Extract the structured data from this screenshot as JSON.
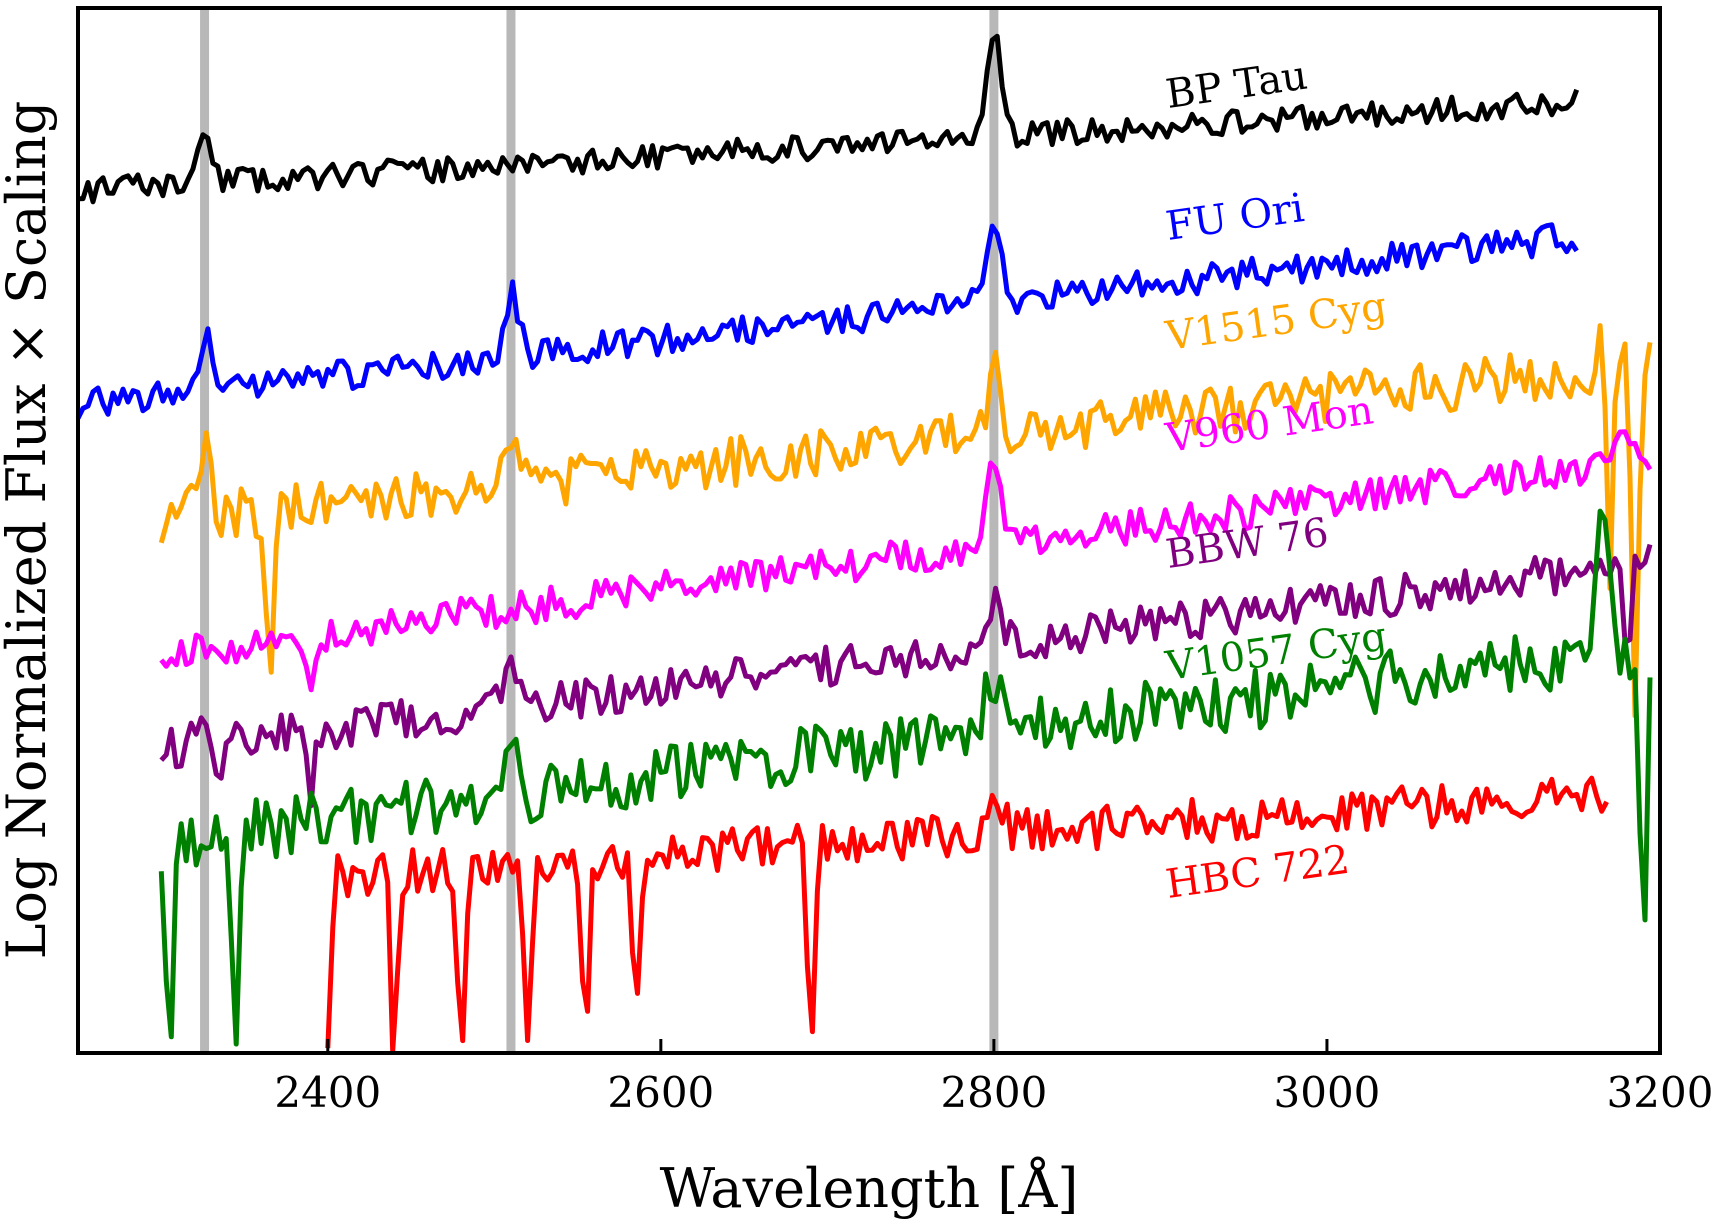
{
  "chart_data": {
    "type": "line",
    "title": "",
    "xlabel": "Wavelength [Å]",
    "ylabel": "Log Normalized Flux × Scaling",
    "xlim": [
      2250,
      3200
    ],
    "ylim": [
      0,
      10
    ],
    "xticks": [
      2400,
      2600,
      2800,
      3000,
      3200
    ],
    "xtick_labels": [
      "2400",
      "2600",
      "2800",
      "3000",
      "3200"
    ],
    "grid": false,
    "legend": "inline labels at right",
    "reference_lines": [
      {
        "name": "line-2326",
        "x": 2326
      },
      {
        "name": "line-2510",
        "x": 2510
      },
      {
        "name": "line-2800",
        "x": 2800
      }
    ],
    "series": [
      {
        "name": "BP Tau",
        "label": "BP Tau",
        "color": "#000000",
        "x_start": 2250,
        "x_end": 3150,
        "base": 8.25,
        "slope": 0.9,
        "noise": 0.2,
        "seed": 11,
        "lines": [
          [
            2326,
            0.45
          ],
          [
            2800,
            1.0
          ]
        ],
        "dips": []
      },
      {
        "name": "FU Ori",
        "label": "FU Ori",
        "color": "#0000ff",
        "x_start": 2250,
        "x_end": 3150,
        "base": 6.2,
        "slope": 1.7,
        "noise": 0.24,
        "seed": 23,
        "lines": [
          [
            2326,
            0.5
          ],
          [
            2510,
            0.6
          ],
          [
            2800,
            0.8
          ]
        ],
        "dips": []
      },
      {
        "name": "V1515 Cyg",
        "label": "V1515 Cyg",
        "color": "#ffa500",
        "x_start": 2300,
        "x_end": 3195,
        "base": 5.0,
        "slope": 1.6,
        "noise": 0.4,
        "seed": 37,
        "lines": [
          [
            2326,
            0.6
          ],
          [
            2510,
            0.5
          ],
          [
            2800,
            0.6
          ],
          [
            3170,
            0.9
          ]
        ],
        "dips": [
          [
            2365,
            1.7
          ],
          [
            3185,
            3.4
          ],
          [
            3170,
            3.2
          ]
        ]
      },
      {
        "name": "V960 Mon",
        "label": "V960 Mon",
        "color": "#ff00ff",
        "x_start": 2300,
        "x_end": 3195,
        "base": 3.7,
        "slope": 2.0,
        "noise": 0.28,
        "seed": 41,
        "lines": [
          [
            2800,
            0.7
          ],
          [
            3175,
            0.4
          ]
        ],
        "dips": [
          [
            2390,
            0.6
          ]
        ]
      },
      {
        "name": "BBW 76",
        "label": "BBW 76",
        "color": "#800080",
        "x_start": 2300,
        "x_end": 3195,
        "base": 2.8,
        "slope": 1.9,
        "noise": 0.32,
        "seed": 53,
        "lines": [
          [
            2326,
            0.3
          ],
          [
            2510,
            0.5
          ],
          [
            2800,
            0.4
          ]
        ],
        "dips": [
          [
            2335,
            0.6
          ],
          [
            2390,
            0.7
          ],
          [
            3180,
            0.9
          ]
        ]
      },
      {
        "name": "V1057 Cyg",
        "label": "V1057 Cyg",
        "color": "#008000",
        "x_start": 2300,
        "x_end": 3195,
        "base": 1.9,
        "slope": 2.0,
        "noise": 0.5,
        "seed": 67,
        "lines": [
          [
            2510,
            0.5
          ],
          [
            2800,
            0.6
          ],
          [
            3165,
            1.3
          ]
        ],
        "dips": [
          [
            2305,
            2.0
          ],
          [
            2345,
            1.9
          ],
          [
            3190,
            3.0
          ]
        ]
      },
      {
        "name": "HBC 722",
        "label": "HBC 722",
        "color": "#ff0000",
        "x_start": 2400,
        "x_end": 3170,
        "base": 1.55,
        "slope": 0.95,
        "noise": 0.35,
        "seed": 79,
        "lines": [
          [
            2800,
            0.5
          ]
        ],
        "dips": [
          [
            2585,
            1.3
          ],
          [
            2690,
            1.9
          ],
          [
            2400,
            1.5
          ],
          [
            2440,
            1.8
          ],
          [
            2480,
            1.7
          ],
          [
            2520,
            1.6
          ],
          [
            2555,
            1.5
          ]
        ]
      }
    ]
  }
}
